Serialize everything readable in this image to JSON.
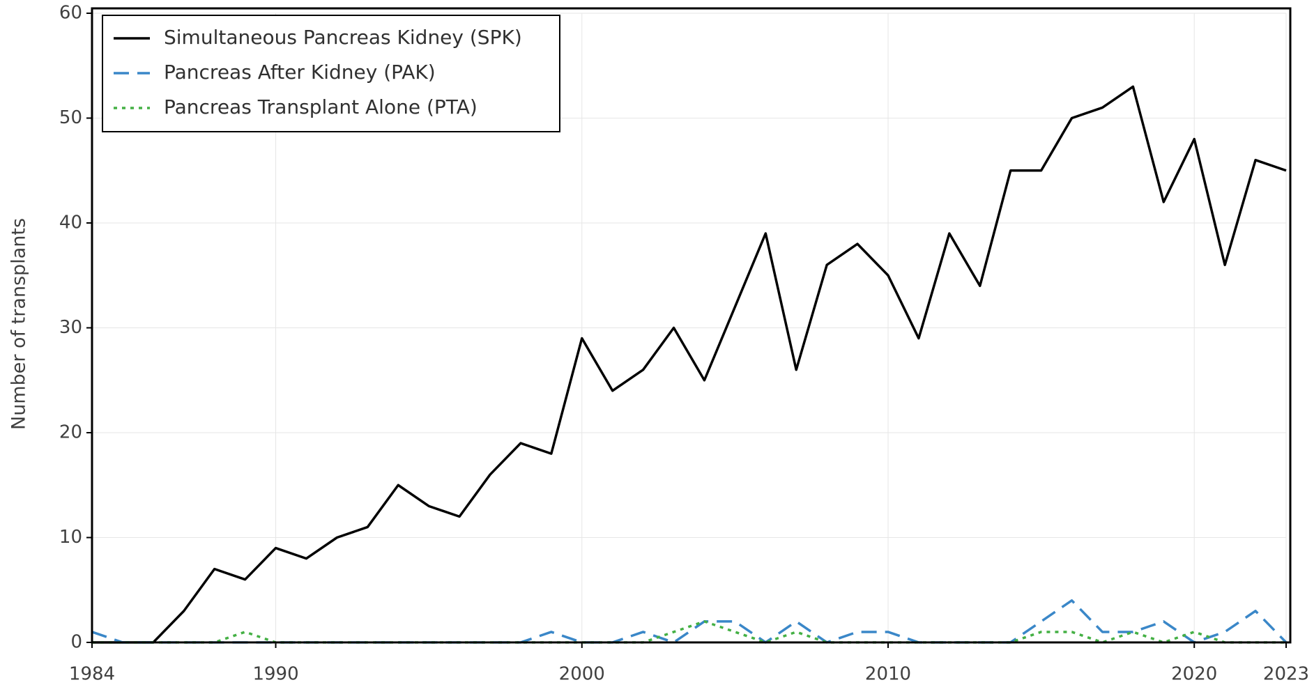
{
  "chart_data": {
    "type": "line",
    "y_label": "Number of transplants",
    "x": [
      1984,
      1985,
      1986,
      1987,
      1988,
      1989,
      1990,
      1991,
      1992,
      1993,
      1994,
      1995,
      1996,
      1997,
      1998,
      1999,
      2000,
      2001,
      2002,
      2003,
      2004,
      2005,
      2006,
      2007,
      2008,
      2009,
      2010,
      2011,
      2012,
      2013,
      2014,
      2015,
      2016,
      2017,
      2018,
      2019,
      2020,
      2021,
      2022,
      2023
    ],
    "series": [
      {
        "name": "Simultaneous Pancreas Kidney (SPK)",
        "color": "#000000",
        "dash": "solid",
        "values": [
          0,
          0,
          0,
          3,
          7,
          6,
          9,
          8,
          10,
          11,
          15,
          13,
          12,
          16,
          19,
          18,
          29,
          24,
          26,
          30,
          25,
          32,
          39,
          26,
          36,
          38,
          35,
          29,
          39,
          34,
          45,
          45,
          50,
          51,
          53,
          42,
          48,
          36,
          46,
          45
        ]
      },
      {
        "name": "Pancreas After Kidney (PAK)",
        "color": "#3a87c8",
        "dash": "dashed",
        "values": [
          1,
          0,
          0,
          0,
          0,
          0,
          0,
          0,
          0,
          0,
          0,
          0,
          0,
          0,
          0,
          1,
          0,
          0,
          1,
          0,
          2,
          2,
          0,
          2,
          0,
          1,
          1,
          0,
          0,
          0,
          0,
          2,
          4,
          1,
          1,
          2,
          0,
          1,
          3,
          0
        ]
      },
      {
        "name": "Pancreas Transplant Alone (PTA)",
        "color": "#44b044",
        "dash": "dotted",
        "values": [
          0,
          0,
          0,
          0,
          0,
          1,
          0,
          0,
          0,
          0,
          0,
          0,
          0,
          0,
          0,
          0,
          0,
          0,
          0,
          1,
          2,
          1,
          0,
          1,
          0,
          0,
          0,
          0,
          0,
          0,
          0,
          1,
          1,
          0,
          1,
          0,
          1,
          0,
          0,
          0
        ]
      }
    ],
    "xlim": [
      1984,
      2023
    ],
    "xticks": [
      1984,
      1990,
      2000,
      2010,
      2020,
      2023
    ],
    "ylim": [
      0,
      60
    ],
    "yticks": [
      0,
      10,
      20,
      30,
      40,
      50,
      60
    ],
    "grid": true,
    "legend": "upper left"
  }
}
